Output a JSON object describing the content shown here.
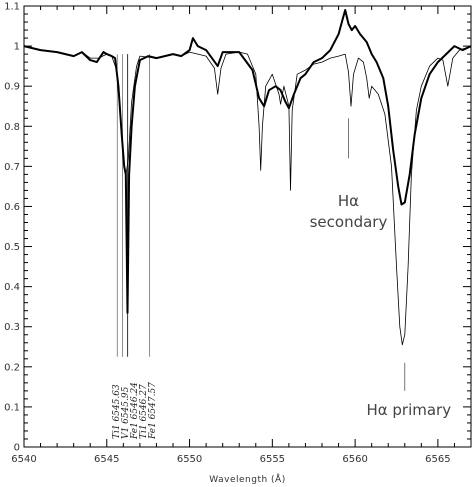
{
  "chart_data": {
    "type": "line",
    "xlabel": "Wavelength (Å)",
    "ylabel": "",
    "xlim": [
      6540,
      6567
    ],
    "ylim": [
      0,
      1.1
    ],
    "x_ticks": [
      6540,
      6545,
      6550,
      6555,
      6560,
      6565
    ],
    "y_ticks": [
      0,
      0.1,
      0.2,
      0.3,
      0.4,
      0.5,
      0.6,
      0.7,
      0.8,
      0.9,
      1,
      1.1
    ],
    "grid": false,
    "series": [
      {
        "style": "thick",
        "points": [
          [
            6540.0,
            1.0
          ],
          [
            6541.0,
            0.99
          ],
          [
            6542.0,
            0.985
          ],
          [
            6543.0,
            0.975
          ],
          [
            6543.5,
            0.985
          ],
          [
            6544.0,
            0.965
          ],
          [
            6544.4,
            0.96
          ],
          [
            6544.8,
            0.985
          ],
          [
            6545.0,
            0.98
          ],
          [
            6545.3,
            0.975
          ],
          [
            6545.5,
            0.97
          ],
          [
            6545.7,
            0.9
          ],
          [
            6545.9,
            0.78
          ],
          [
            6546.05,
            0.7
          ],
          [
            6546.15,
            0.68
          ],
          [
            6546.25,
            0.335
          ],
          [
            6546.35,
            0.68
          ],
          [
            6546.5,
            0.8
          ],
          [
            6546.7,
            0.9
          ],
          [
            6547.0,
            0.965
          ],
          [
            6547.5,
            0.975
          ],
          [
            6548.0,
            0.97
          ],
          [
            6549.0,
            0.98
          ],
          [
            6549.5,
            0.975
          ],
          [
            6550.0,
            0.99
          ],
          [
            6550.2,
            1.02
          ],
          [
            6550.5,
            1.0
          ],
          [
            6551.0,
            0.99
          ],
          [
            6551.7,
            0.95
          ],
          [
            6552.0,
            0.985
          ],
          [
            6553.0,
            0.985
          ],
          [
            6553.8,
            0.94
          ],
          [
            6554.2,
            0.87
          ],
          [
            6554.5,
            0.85
          ],
          [
            6554.8,
            0.89
          ],
          [
            6555.2,
            0.9
          ],
          [
            6555.5,
            0.89
          ],
          [
            6555.8,
            0.86
          ],
          [
            6556.0,
            0.845
          ],
          [
            6556.3,
            0.88
          ],
          [
            6556.7,
            0.92
          ],
          [
            6557.0,
            0.93
          ],
          [
            6557.5,
            0.96
          ],
          [
            6558.0,
            0.97
          ],
          [
            6558.5,
            0.99
          ],
          [
            6559.0,
            1.03
          ],
          [
            6559.2,
            1.06
          ],
          [
            6559.4,
            1.09
          ],
          [
            6559.6,
            1.055
          ],
          [
            6559.8,
            1.04
          ],
          [
            6560.0,
            1.05
          ],
          [
            6560.3,
            1.03
          ],
          [
            6560.7,
            1.01
          ],
          [
            6561.0,
            0.98
          ],
          [
            6561.3,
            0.96
          ],
          [
            6561.7,
            0.92
          ],
          [
            6562.0,
            0.85
          ],
          [
            6562.3,
            0.74
          ],
          [
            6562.6,
            0.65
          ],
          [
            6562.8,
            0.605
          ],
          [
            6563.0,
            0.61
          ],
          [
            6563.3,
            0.68
          ],
          [
            6563.6,
            0.78
          ],
          [
            6564.0,
            0.87
          ],
          [
            6564.5,
            0.93
          ],
          [
            6565.0,
            0.96
          ],
          [
            6565.5,
            0.98
          ],
          [
            6566.0,
            1.0
          ],
          [
            6566.5,
            0.99
          ],
          [
            6567.0,
            1.0
          ]
        ]
      },
      {
        "style": "thin",
        "points": [
          [
            6540.0,
            1.0
          ],
          [
            6541.0,
            0.99
          ],
          [
            6542.0,
            0.985
          ],
          [
            6543.0,
            0.975
          ],
          [
            6543.5,
            0.985
          ],
          [
            6544.0,
            0.97
          ],
          [
            6544.5,
            0.97
          ],
          [
            6545.0,
            0.98
          ],
          [
            6545.3,
            0.975
          ],
          [
            6545.6,
            0.94
          ],
          [
            6545.8,
            0.84
          ],
          [
            6546.0,
            0.72
          ],
          [
            6546.15,
            0.675
          ],
          [
            6546.3,
            0.72
          ],
          [
            6546.5,
            0.86
          ],
          [
            6546.8,
            0.95
          ],
          [
            6547.0,
            0.975
          ],
          [
            6548.0,
            0.97
          ],
          [
            6549.0,
            0.98
          ],
          [
            6549.5,
            0.975
          ],
          [
            6550.0,
            0.985
          ],
          [
            6550.5,
            0.98
          ],
          [
            6551.0,
            0.975
          ],
          [
            6551.5,
            0.945
          ],
          [
            6551.7,
            0.88
          ],
          [
            6551.9,
            0.945
          ],
          [
            6552.2,
            0.98
          ],
          [
            6553.0,
            0.985
          ],
          [
            6553.5,
            0.98
          ],
          [
            6554.0,
            0.93
          ],
          [
            6554.2,
            0.8
          ],
          [
            6554.3,
            0.69
          ],
          [
            6554.4,
            0.8
          ],
          [
            6554.6,
            0.9
          ],
          [
            6555.0,
            0.93
          ],
          [
            6555.4,
            0.88
          ],
          [
            6555.5,
            0.855
          ],
          [
            6555.7,
            0.9
          ],
          [
            6556.0,
            0.85
          ],
          [
            6556.1,
            0.64
          ],
          [
            6556.2,
            0.84
          ],
          [
            6556.5,
            0.93
          ],
          [
            6557.0,
            0.94
          ],
          [
            6557.5,
            0.955
          ],
          [
            6558.0,
            0.96
          ],
          [
            6558.5,
            0.97
          ],
          [
            6559.0,
            0.975
          ],
          [
            6559.4,
            0.98
          ],
          [
            6559.6,
            0.935
          ],
          [
            6559.75,
            0.85
          ],
          [
            6559.9,
            0.93
          ],
          [
            6560.2,
            0.97
          ],
          [
            6560.5,
            0.96
          ],
          [
            6560.7,
            0.92
          ],
          [
            6560.85,
            0.87
          ],
          [
            6561.0,
            0.9
          ],
          [
            6561.4,
            0.88
          ],
          [
            6561.8,
            0.83
          ],
          [
            6562.2,
            0.7
          ],
          [
            6562.5,
            0.45
          ],
          [
            6562.7,
            0.3
          ],
          [
            6562.85,
            0.255
          ],
          [
            6563.0,
            0.28
          ],
          [
            6563.2,
            0.45
          ],
          [
            6563.4,
            0.68
          ],
          [
            6563.7,
            0.84
          ],
          [
            6564.0,
            0.9
          ],
          [
            6564.5,
            0.95
          ],
          [
            6565.0,
            0.97
          ],
          [
            6565.3,
            0.965
          ],
          [
            6565.6,
            0.9
          ],
          [
            6565.9,
            0.97
          ],
          [
            6566.3,
            0.99
          ],
          [
            6567.0,
            1.0
          ]
        ]
      }
    ],
    "line_ids": [
      {
        "label": "Ti1  6545.63",
        "x": 6545.63
      },
      {
        "label": "V1  6545.95",
        "x": 6545.95
      },
      {
        "label": "Fe1  6546.24",
        "x": 6546.24
      },
      {
        "label": "Ti1  6546.27",
        "x": 6546.27
      },
      {
        "label": "Fe1  6547.57",
        "x": 6547.57
      }
    ],
    "annotations": [
      {
        "label": "Hα",
        "sublabel": "secondary",
        "x": 6559.6
      },
      {
        "label": "Hα primary",
        "x": 6563.0
      }
    ]
  }
}
